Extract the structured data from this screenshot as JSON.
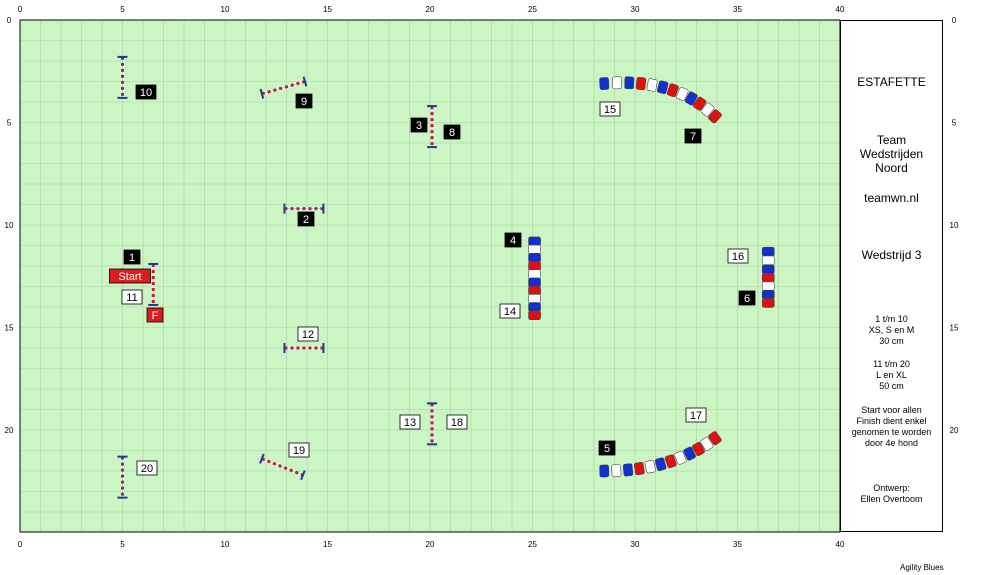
{
  "course": {
    "x_ticks": [
      "0",
      "5",
      "10",
      "15",
      "20",
      "25",
      "30",
      "35",
      "40"
    ],
    "y_ticks": [
      "0",
      "5",
      "10",
      "15",
      "20"
    ],
    "colors": {
      "grass": "#ccf5c4",
      "grid": "#a8cfa4",
      "pole_red": "#cc2222",
      "post_blue": "#1a3a9a",
      "tunnel_red": "#e01010",
      "tunnel_blue": "#1030d0"
    },
    "labels": {
      "l1": "1",
      "l2": "2",
      "l3": "3",
      "l4": "4",
      "l5": "5",
      "l6": "6",
      "l7": "7",
      "l8": "8",
      "l9": "9",
      "l10": "10",
      "l11": "11",
      "l12": "12",
      "l13": "13",
      "l14": "14",
      "l15": "15",
      "l16": "16",
      "l17": "17",
      "l18": "18",
      "l19": "19",
      "l20": "20",
      "start": "Start",
      "finish": "F"
    }
  },
  "sidebar": {
    "title": "ESTAFETTE",
    "team": "Team",
    "team_name_1": "Wedstrijden",
    "team_name_2": "Noord",
    "website": "teamwn.nl",
    "competition": "Wedstrijd 3",
    "group1_range": "1 t/m 10",
    "group1_classes": "XS, S en M",
    "group1_height": "30 cm",
    "group2_range": "11 t/m 20",
    "group2_classes": "L en XL",
    "group2_height": "50 cm",
    "note_1": "Start voor allen",
    "note_2": "Finish dient enkel",
    "note_3": "genomen te worden",
    "note_4": "door 4e hond",
    "design_label": "Ontwerp:",
    "designer": "Ellen Overtoom"
  },
  "footer": "Agility Blues"
}
